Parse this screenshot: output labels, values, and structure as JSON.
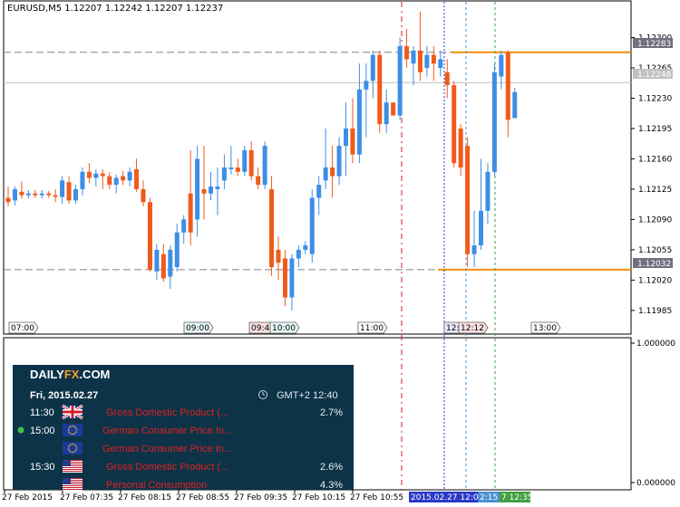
{
  "header": {
    "title": "EURUSD,M5  1.12207  1.12242  1.12207  1.12237"
  },
  "colors": {
    "up": "#3d8ee6",
    "down": "#f05a1a",
    "hline": "#808090",
    "orange": "#f0900a",
    "red_vline": "#d42020",
    "blue_vline": "#2a3ac8",
    "lightblue_vline": "#4a90d0",
    "green_vline": "#40a040",
    "panel_bg": "#0d3348"
  },
  "price_axis": {
    "ticks": [
      "1.12300",
      "1.12265",
      "1.12230",
      "1.12195",
      "1.12160",
      "1.12125",
      "1.12090",
      "1.12055",
      "1.12020",
      "1.11985"
    ],
    "tag_1": "1.12283",
    "tag_2": "1.12248",
    "tag_3": "1.12032"
  },
  "time_markers": [
    "07:00",
    "09:00",
    "09:45",
    "10:00",
    "11:00",
    "12:",
    "12:12",
    "13:00"
  ],
  "indicator_axis": {
    "top": "1.000000",
    "bottom": "0.000000"
  },
  "date_axis": {
    "labels": [
      "27 Feb 2015",
      "27 Feb 07:35",
      "27 Feb 08:15",
      "27 Feb 08:55",
      "27 Feb 09:35",
      "27 Feb 10:15",
      "27 Feb 10:55"
    ],
    "highlight_1": "2015.02.27 12:00",
    "highlight_2": "2:15",
    "highlight_3": "7 12:35"
  },
  "panel": {
    "brand_daily": "DAILY",
    "brand_fx": "FX",
    "brand_com": ".COM",
    "date": "Fri, 2015.02.27",
    "timezone": "GMT+2 12:40",
    "events": [
      {
        "time": "11:30",
        "flag": "gb",
        "name": "Gross Domestic Product (...",
        "value": "2.7%"
      },
      {
        "time": "15:00",
        "flag": "eu",
        "name": "German Consumer Price In...",
        "value": ""
      },
      {
        "time": "",
        "flag": "eu",
        "name": "German Consumer Price In...",
        "value": ""
      },
      {
        "time": "15:30",
        "flag": "us",
        "name": "Gross Domestic Product (...",
        "value": "2.6%"
      },
      {
        "time": "",
        "flag": "us",
        "name": "Personal Consumption",
        "value": "4.3%"
      }
    ]
  },
  "chart_data": {
    "type": "candlestick",
    "symbol": "EURUSD",
    "timeframe": "M5",
    "ylim": [
      1.11965,
      1.12335
    ],
    "horizontal_levels": [
      1.12283,
      1.12248,
      1.12032
    ],
    "candles": [
      {
        "o": 1.12115,
        "h": 1.12128,
        "l": 1.12105,
        "c": 1.1211
      },
      {
        "o": 1.12112,
        "h": 1.12128,
        "l": 1.12106,
        "c": 1.12125
      },
      {
        "o": 1.12122,
        "h": 1.12134,
        "l": 1.12114,
        "c": 1.12118
      },
      {
        "o": 1.12118,
        "h": 1.12124,
        "l": 1.12114,
        "c": 1.1212
      },
      {
        "o": 1.1212,
        "h": 1.12124,
        "l": 1.12115,
        "c": 1.12118
      },
      {
        "o": 1.12118,
        "h": 1.12124,
        "l": 1.12114,
        "c": 1.1212
      },
      {
        "o": 1.1212,
        "h": 1.12123,
        "l": 1.12115,
        "c": 1.12118
      },
      {
        "o": 1.12118,
        "h": 1.12125,
        "l": 1.1211,
        "c": 1.12116
      },
      {
        "o": 1.12116,
        "h": 1.1214,
        "l": 1.12108,
        "c": 1.12135
      },
      {
        "o": 1.12133,
        "h": 1.1214,
        "l": 1.12108,
        "c": 1.12112
      },
      {
        "o": 1.12112,
        "h": 1.1213,
        "l": 1.12108,
        "c": 1.12125
      },
      {
        "o": 1.12125,
        "h": 1.1215,
        "l": 1.12118,
        "c": 1.12145
      },
      {
        "o": 1.12145,
        "h": 1.12155,
        "l": 1.12132,
        "c": 1.12138
      },
      {
        "o": 1.12138,
        "h": 1.12148,
        "l": 1.12128,
        "c": 1.12143
      },
      {
        "o": 1.12143,
        "h": 1.12148,
        "l": 1.12125,
        "c": 1.1214
      },
      {
        "o": 1.1214,
        "h": 1.12145,
        "l": 1.12125,
        "c": 1.1213
      },
      {
        "o": 1.1213,
        "h": 1.12142,
        "l": 1.1212,
        "c": 1.12138
      },
      {
        "o": 1.1214,
        "h": 1.12146,
        "l": 1.1213,
        "c": 1.12135
      },
      {
        "o": 1.12135,
        "h": 1.1215,
        "l": 1.12128,
        "c": 1.12145
      },
      {
        "o": 1.12148,
        "h": 1.1216,
        "l": 1.12122,
        "c": 1.12125
      },
      {
        "o": 1.12125,
        "h": 1.12135,
        "l": 1.12105,
        "c": 1.1211
      },
      {
        "o": 1.1211,
        "h": 1.12115,
        "l": 1.1203,
        "c": 1.12032
      },
      {
        "o": 1.1203,
        "h": 1.12062,
        "l": 1.1202,
        "c": 1.12055
      },
      {
        "o": 1.1205,
        "h": 1.12062,
        "l": 1.12018,
        "c": 1.12022
      },
      {
        "o": 1.12024,
        "h": 1.1206,
        "l": 1.1201,
        "c": 1.12055
      },
      {
        "o": 1.12035,
        "h": 1.12085,
        "l": 1.1203,
        "c": 1.12075
      },
      {
        "o": 1.12075,
        "h": 1.12095,
        "l": 1.12062,
        "c": 1.1209
      },
      {
        "o": 1.1212,
        "h": 1.1217,
        "l": 1.1206,
        "c": 1.12075
      },
      {
        "o": 1.1209,
        "h": 1.12175,
        "l": 1.1207,
        "c": 1.1216
      },
      {
        "o": 1.12125,
        "h": 1.12175,
        "l": 1.1209,
        "c": 1.1212
      },
      {
        "o": 1.1212,
        "h": 1.12145,
        "l": 1.12112,
        "c": 1.12128
      },
      {
        "o": 1.12125,
        "h": 1.1215,
        "l": 1.12095,
        "c": 1.12128
      },
      {
        "o": 1.12135,
        "h": 1.12165,
        "l": 1.12125,
        "c": 1.1215
      },
      {
        "o": 1.12148,
        "h": 1.12175,
        "l": 1.12142,
        "c": 1.1215
      },
      {
        "o": 1.1215,
        "h": 1.1216,
        "l": 1.1214,
        "c": 1.12145
      },
      {
        "o": 1.12145,
        "h": 1.12175,
        "l": 1.1214,
        "c": 1.1217
      },
      {
        "o": 1.1217,
        "h": 1.1218,
        "l": 1.12135,
        "c": 1.1214
      },
      {
        "o": 1.1214,
        "h": 1.1215,
        "l": 1.12125,
        "c": 1.1213
      },
      {
        "o": 1.1213,
        "h": 1.1218,
        "l": 1.12125,
        "c": 1.12175
      },
      {
        "o": 1.12125,
        "h": 1.1214,
        "l": 1.12025,
        "c": 1.12035
      },
      {
        "o": 1.12055,
        "h": 1.1207,
        "l": 1.1202,
        "c": 1.1204
      },
      {
        "o": 1.12045,
        "h": 1.12055,
        "l": 1.1199,
        "c": 1.12
      },
      {
        "o": 1.12,
        "h": 1.1205,
        "l": 1.11985,
        "c": 1.12045
      },
      {
        "o": 1.12045,
        "h": 1.1206,
        "l": 1.12035,
        "c": 1.12055
      },
      {
        "o": 1.12055,
        "h": 1.12065,
        "l": 1.1205,
        "c": 1.1206
      },
      {
        "o": 1.1205,
        "h": 1.12125,
        "l": 1.1204,
        "c": 1.12115
      },
      {
        "o": 1.12115,
        "h": 1.1214,
        "l": 1.12095,
        "c": 1.1213
      },
      {
        "o": 1.12135,
        "h": 1.12195,
        "l": 1.12125,
        "c": 1.1215
      },
      {
        "o": 1.1215,
        "h": 1.12175,
        "l": 1.12115,
        "c": 1.1214
      },
      {
        "o": 1.1214,
        "h": 1.12185,
        "l": 1.1213,
        "c": 1.12175
      },
      {
        "o": 1.12175,
        "h": 1.12225,
        "l": 1.1214,
        "c": 1.12195
      },
      {
        "o": 1.12195,
        "h": 1.1223,
        "l": 1.12155,
        "c": 1.12165
      },
      {
        "o": 1.12165,
        "h": 1.1227,
        "l": 1.12155,
        "c": 1.1224
      },
      {
        "o": 1.1224,
        "h": 1.1227,
        "l": 1.12185,
        "c": 1.1225
      },
      {
        "o": 1.1225,
        "h": 1.12285,
        "l": 1.1223,
        "c": 1.1228
      },
      {
        "o": 1.1228,
        "h": 1.12285,
        "l": 1.1219,
        "c": 1.122
      },
      {
        "o": 1.122,
        "h": 1.1224,
        "l": 1.1219,
        "c": 1.12225
      },
      {
        "o": 1.12225,
        "h": 1.12225,
        "l": 1.1221,
        "c": 1.1221
      },
      {
        "o": 1.1221,
        "h": 1.123,
        "l": 1.12205,
        "c": 1.1229
      },
      {
        "o": 1.1229,
        "h": 1.1231,
        "l": 1.12265,
        "c": 1.12275
      },
      {
        "o": 1.1227,
        "h": 1.1229,
        "l": 1.12245,
        "c": 1.12285
      },
      {
        "o": 1.12285,
        "h": 1.1233,
        "l": 1.1225,
        "c": 1.1226
      },
      {
        "o": 1.12265,
        "h": 1.1229,
        "l": 1.12255,
        "c": 1.1228
      },
      {
        "o": 1.1228,
        "h": 1.1229,
        "l": 1.1225,
        "c": 1.1227
      },
      {
        "o": 1.12265,
        "h": 1.12285,
        "l": 1.12255,
        "c": 1.12275
      },
      {
        "o": 1.1226,
        "h": 1.12275,
        "l": 1.1223,
        "c": 1.12245
      },
      {
        "o": 1.12245,
        "h": 1.1225,
        "l": 1.1215,
        "c": 1.12155
      },
      {
        "o": 1.12195,
        "h": 1.122,
        "l": 1.1214,
        "c": 1.1215
      },
      {
        "o": 1.12175,
        "h": 1.12185,
        "l": 1.12035,
        "c": 1.1205
      },
      {
        "o": 1.1205,
        "h": 1.121,
        "l": 1.12035,
        "c": 1.1206
      },
      {
        "o": 1.1206,
        "h": 1.1216,
        "l": 1.12055,
        "c": 1.121
      },
      {
        "o": 1.121,
        "h": 1.12155,
        "l": 1.12085,
        "c": 1.12145
      },
      {
        "o": 1.12145,
        "h": 1.1227,
        "l": 1.1214,
        "c": 1.1226
      },
      {
        "o": 1.12255,
        "h": 1.12285,
        "l": 1.1224,
        "c": 1.1228
      },
      {
        "o": 1.12283,
        "h": 1.12285,
        "l": 1.12185,
        "c": 1.12205
      },
      {
        "o": 1.12207,
        "h": 1.12242,
        "l": 1.12207,
        "c": 1.12237
      }
    ]
  }
}
